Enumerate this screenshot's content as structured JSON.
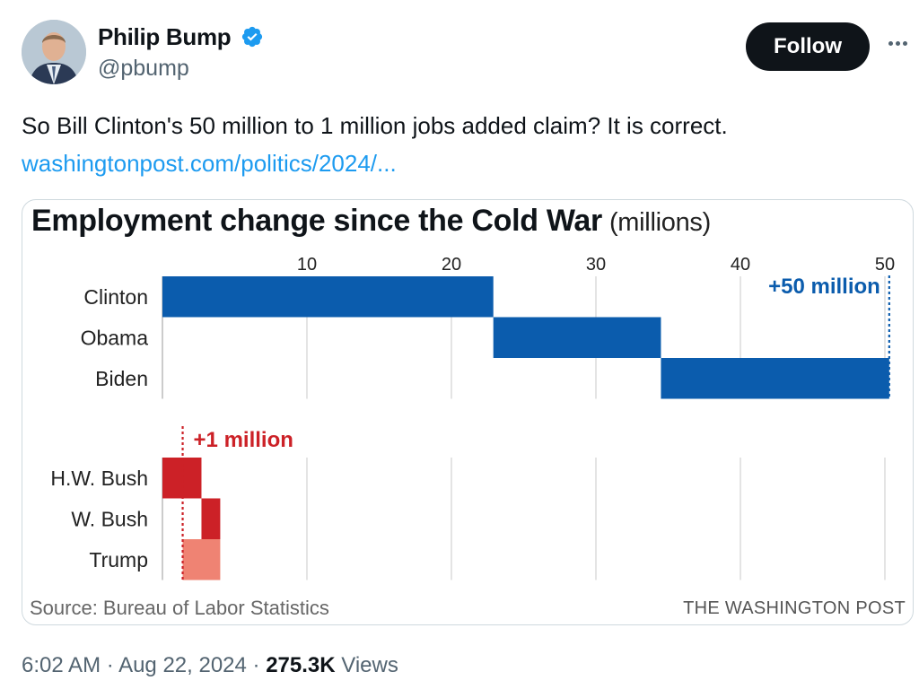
{
  "author": {
    "name": "Philip Bump",
    "handle": "@pbump"
  },
  "follow_label": "Follow",
  "tweet": {
    "text": "So Bill Clinton's 50 million to 1 million jobs added claim? It is correct.",
    "link": "washingtonpost.com/politics/2024/..."
  },
  "chart_data": {
    "type": "bar",
    "title": "Employment change since the Cold War",
    "title_unit": "(millions)",
    "xlim": [
      0,
      50
    ],
    "xticks": [
      10,
      20,
      30,
      40,
      50
    ],
    "grid": true,
    "democrats": {
      "total_label": "+50 million",
      "rows": [
        {
          "label": "Clinton",
          "start": 0,
          "end": 22.9
        },
        {
          "label": "Obama",
          "start": 22.9,
          "end": 34.5
        },
        {
          "label": "Biden",
          "start": 34.5,
          "end": 50.3
        }
      ]
    },
    "republicans": {
      "total_label": "+1 million",
      "rows": [
        {
          "label": "H.W. Bush",
          "start": 0,
          "end": 2.7
        },
        {
          "label": "W. Bush",
          "start": 2.7,
          "end": 4.0
        },
        {
          "label": "Trump",
          "start": 4.0,
          "end": 1.4
        }
      ]
    },
    "colors": {
      "democrat": "#0b5cad",
      "republican": "#cc2127",
      "decline": "#ef8373"
    },
    "source": "Source: Bureau of Labor Statistics",
    "publisher": "THE WASHINGTON POST"
  },
  "meta": {
    "time": "6:02 AM",
    "date": "Aug 22, 2024",
    "views_count": "275.3K",
    "views_label": "Views"
  }
}
